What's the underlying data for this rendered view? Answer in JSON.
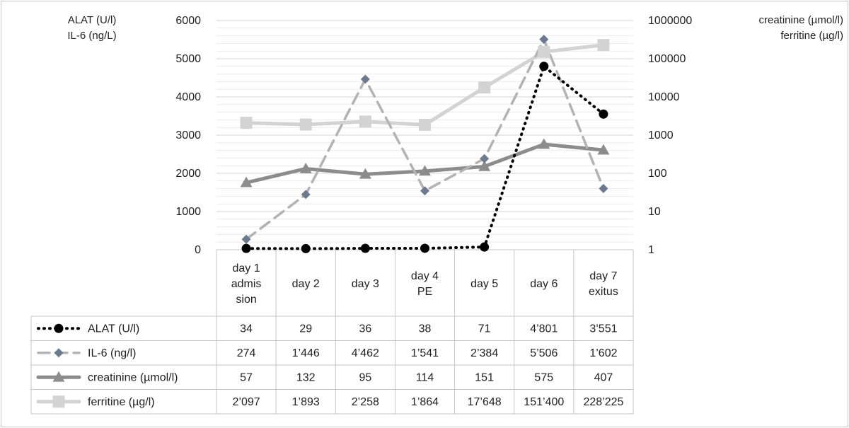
{
  "chart_data": {
    "type": "line",
    "categories": [
      [
        "day 1",
        "admis",
        "sion"
      ],
      [
        "day 2"
      ],
      [
        "day 3"
      ],
      [
        "day 4",
        "PE"
      ],
      [
        "day 5"
      ],
      [
        "day 6"
      ],
      [
        "day 7",
        "exitus"
      ]
    ],
    "left_axis": {
      "title_lines": [
        "ALAT (U/l)",
        "IL-6 (ng/L)"
      ],
      "ticks": [
        "0",
        "1000",
        "2000",
        "3000",
        "4000",
        "5000",
        "6000"
      ],
      "ylim": [
        0,
        6000
      ],
      "scale": "linear"
    },
    "right_axis": {
      "title_lines": [
        "creatinine (µmol/l)",
        "ferritine (µg/l)"
      ],
      "ticks": [
        "1",
        "10",
        "100",
        "1000",
        "10000",
        "100000",
        "1000000"
      ],
      "ylim": [
        1,
        1000000
      ],
      "scale": "log"
    },
    "grid": true,
    "legend": "data-table-below",
    "series": [
      {
        "name": "ALAT (U/l)",
        "axis": "left",
        "color": "#000000",
        "dash": "dotted",
        "marker": "circle",
        "values": [
          34,
          29,
          36,
          38,
          71,
          4801,
          3551
        ],
        "labels": [
          "34",
          "29",
          "36",
          "38",
          "71",
          "4’801",
          "3’551"
        ]
      },
      {
        "name": "IL-6 (ng/l)",
        "axis": "left",
        "color": "#b3b3b3",
        "marker_color": "#6b7a90",
        "dash": "dashed",
        "marker": "diamond",
        "values": [
          274,
          1446,
          4462,
          1541,
          2384,
          5506,
          1602
        ],
        "labels": [
          "274",
          "1’446",
          "4’462",
          "1’541",
          "2’384",
          "5’506",
          "1’602"
        ]
      },
      {
        "name": "creatinine (µmol/l)",
        "axis": "right",
        "color": "#8c8c8c",
        "dash": "solid",
        "marker": "triangle",
        "values": [
          57,
          132,
          95,
          114,
          151,
          575,
          407
        ],
        "labels": [
          "57",
          "132",
          "95",
          "114",
          "151",
          "575",
          "407"
        ]
      },
      {
        "name": "ferritine (µg/l)",
        "axis": "right",
        "color": "#d3d3d3",
        "dash": "solid",
        "marker": "square",
        "values": [
          2097,
          1893,
          2258,
          1864,
          17648,
          151400,
          228225
        ],
        "labels": [
          "2’097",
          "1’893",
          "2’258",
          "1’864",
          "17’648",
          "151’400",
          "228’225"
        ]
      }
    ]
  }
}
